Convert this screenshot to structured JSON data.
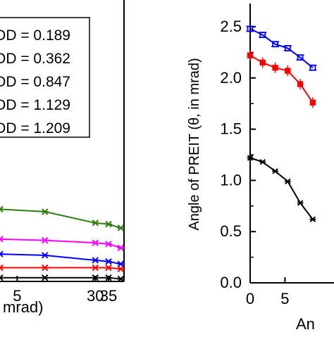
{
  "chart_data": [
    {
      "type": "line",
      "title": "",
      "xlabel": "mrad)",
      "ylabel": "",
      "xlim": [
        0,
        38
      ],
      "ylim": [
        0,
        2.6
      ],
      "grid": false,
      "legend_placement": "top-right",
      "x_tick_labels": [
        "5",
        "30",
        "35"
      ],
      "legend": [
        "OD = 0.189",
        "OD = 0.362",
        "OD = 0.847",
        "OD = 1.129",
        "OD = 1.209"
      ],
      "series": [
        {
          "color": "#2e7d0f",
          "x": [
            0,
            13.6,
            28.9,
            32.9,
            36.6
          ],
          "y": [
            0.58,
            0.56,
            0.47,
            0.46,
            0.43
          ]
        },
        {
          "color": "#ff00ff",
          "x": [
            0,
            13.6,
            28.9,
            32.9,
            36.6
          ],
          "y": [
            0.34,
            0.33,
            0.31,
            0.3,
            0.27
          ]
        },
        {
          "color": "#0000ff",
          "x": [
            0,
            13.6,
            28.9,
            32.9,
            36.6
          ],
          "y": [
            0.22,
            0.21,
            0.17,
            0.16,
            0.14
          ]
        },
        {
          "color": "#ff0000",
          "x": [
            0,
            13.6,
            28.9,
            32.9,
            36.6
          ],
          "y": [
            0.11,
            0.11,
            0.11,
            0.11,
            0.1
          ]
        },
        {
          "color": "#000000",
          "x": [
            0,
            13.6,
            28.9,
            32.9,
            36.6
          ],
          "y": [
            0.03,
            0.03,
            0.03,
            0.03,
            0.02
          ]
        }
      ]
    },
    {
      "type": "line",
      "title": "",
      "xlabel": "An",
      "ylabel": "Angle of PREIT  (θ, in mrad)",
      "xlim": [
        0,
        9
      ],
      "ylim": [
        0,
        2.6
      ],
      "grid": false,
      "x_tick_labels": [
        "0",
        "5"
      ],
      "y_tick_labels": [
        "0.0",
        "0.5",
        "1.0",
        "1.5",
        "2.0",
        "2.5"
      ],
      "series": [
        {
          "color": "#0000ff",
          "x": [
            0,
            1.8,
            3.6,
            5.4,
            7.2,
            9.0
          ],
          "y": [
            2.48,
            2.42,
            2.33,
            2.29,
            2.2,
            2.1
          ]
        },
        {
          "color": "#ff0000",
          "x": [
            0,
            1.8,
            3.6,
            5.4,
            7.2,
            9.0
          ],
          "y": [
            2.22,
            2.15,
            2.1,
            2.07,
            1.94,
            1.76
          ]
        },
        {
          "color": "#000000",
          "x": [
            0,
            1.8,
            3.6,
            5.4,
            7.2,
            9.0
          ],
          "y": [
            1.22,
            1.18,
            1.09,
            0.99,
            0.78,
            0.62
          ]
        }
      ]
    }
  ]
}
